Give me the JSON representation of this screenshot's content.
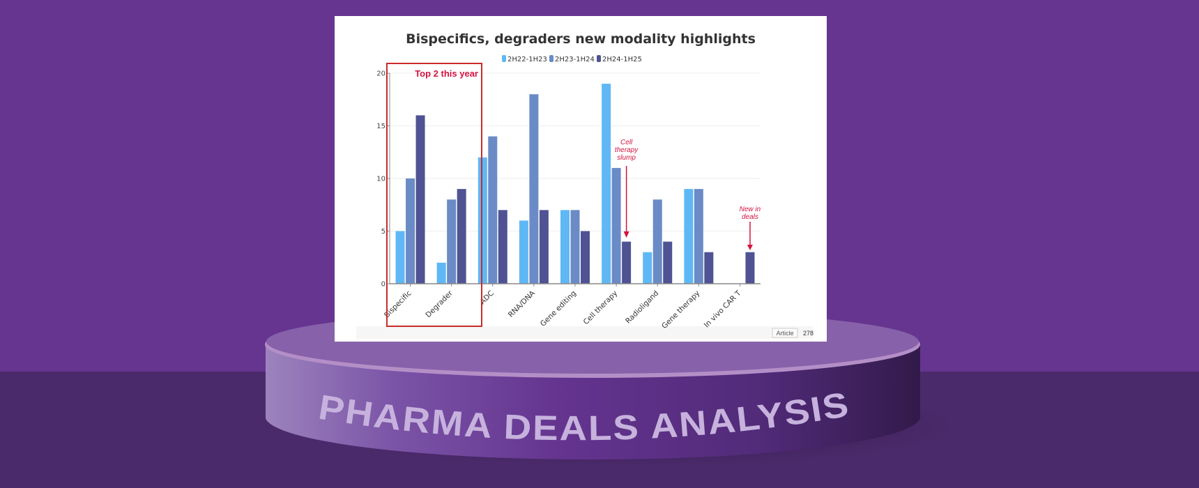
{
  "banner": {
    "pedestal_text": "PHARMA DEALS ANALYSIS"
  },
  "card": {
    "footer_badge": "Article",
    "footer_number": "278"
  },
  "colors": {
    "series": [
      "#5fb8f5",
      "#6a8bc6",
      "#4f5393"
    ],
    "annotation": "#d6123f",
    "background_top": "#663590",
    "background_bottom": "#4b2a6b"
  },
  "chart_data": {
    "type": "bar",
    "title": "Bispecifics, degraders new modality highlights",
    "xlabel": "",
    "ylabel": "",
    "ylim": [
      0,
      20
    ],
    "yticks": [
      "0",
      "5",
      "10",
      "15",
      "20"
    ],
    "legend_position": "top-center",
    "grid": true,
    "categories": [
      "Bispecific",
      "Degrader",
      "ADC",
      "RNA/DNA",
      "Gene editing",
      "Cell therapy",
      "Radioligand",
      "Gene therapy",
      "In vivo CAR T"
    ],
    "series": [
      {
        "name": "2H22-1H23",
        "values": [
          5,
          2,
          12,
          6,
          7,
          19,
          3,
          9,
          0
        ]
      },
      {
        "name": "2H23-1H24",
        "values": [
          10,
          8,
          14,
          18,
          7,
          11,
          8,
          9,
          0
        ]
      },
      {
        "name": "2H24-1H25",
        "values": [
          16,
          9,
          7,
          7,
          5,
          4,
          4,
          3,
          3
        ]
      }
    ],
    "annotations": {
      "highlight_box": "Top 2 this year",
      "cell_therapy": [
        "Cell",
        "therapy",
        "slump"
      ],
      "in_vivo": [
        "New in",
        "deals"
      ]
    }
  }
}
